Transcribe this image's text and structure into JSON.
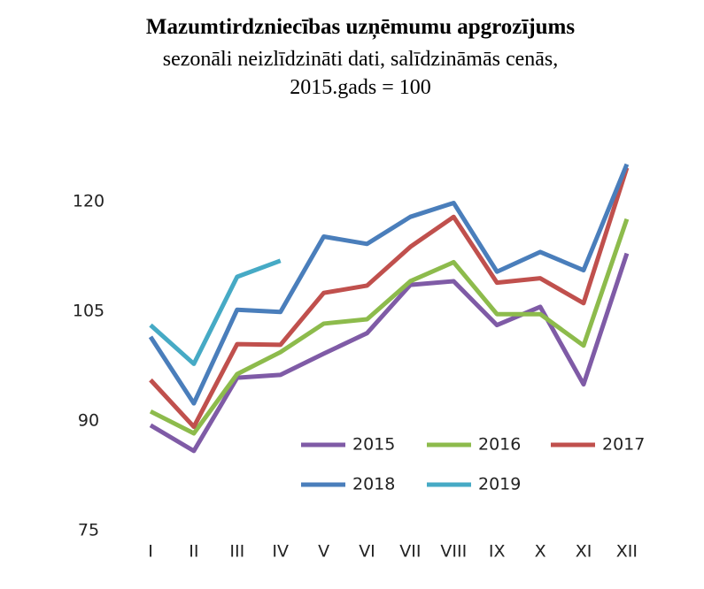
{
  "chart_data": {
    "type": "line",
    "title": "Mazumtirdzniecības uzņēmumu apgrozījums",
    "subtitle": [
      "sezonāli neizlīdzināti dati, salīdzināmās cenās,",
      "2015.gads = 100"
    ],
    "categories": [
      "I",
      "II",
      "III",
      "IV",
      "V",
      "VI",
      "VII",
      "VIII",
      "IX",
      "X",
      "XI",
      "XII"
    ],
    "series": [
      {
        "name": "2015",
        "color": "#7f5ba6",
        "values": [
          89.4,
          85.9,
          95.9,
          96.3,
          99.2,
          102.0,
          108.6,
          109.1,
          103.1,
          105.6,
          95.0,
          112.9
        ]
      },
      {
        "name": "2016",
        "color": "#8dbb4c",
        "values": [
          91.3,
          88.3,
          96.4,
          99.4,
          103.3,
          103.9,
          109.1,
          111.7,
          104.6,
          104.6,
          100.3,
          117.6
        ]
      },
      {
        "name": "2017",
        "color": "#c0504d",
        "values": [
          95.6,
          89.2,
          100.5,
          100.4,
          107.5,
          108.5,
          113.8,
          117.9,
          108.9,
          109.5,
          106.1,
          124.6
        ]
      },
      {
        "name": "2018",
        "color": "#4a7ebb",
        "values": [
          101.5,
          92.4,
          105.2,
          104.9,
          115.2,
          114.2,
          117.9,
          119.8,
          110.4,
          113.1,
          110.6,
          125.1
        ]
      },
      {
        "name": "2019",
        "color": "#46aac5",
        "values": [
          103.1,
          97.8,
          109.7,
          111.9,
          null,
          null,
          null,
          null,
          null,
          null,
          null,
          null
        ]
      }
    ],
    "ylim": [
      75,
      126
    ],
    "yticks": [
      75,
      90,
      105,
      120
    ],
    "legend": "lower right"
  }
}
